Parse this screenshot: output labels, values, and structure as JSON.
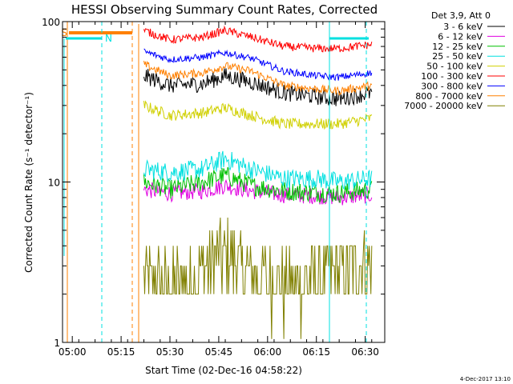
{
  "chart_data": {
    "type": "line",
    "title": "HESSI Observing Summary Count Rates, Corrected",
    "xlabel": "Start Time (02-Dec-16 04:58:22)",
    "ylabel": "Corrected Count Rate (s⁻¹ detector⁻¹)",
    "yscale": "log",
    "ylim": [
      1,
      100
    ],
    "xlim": [
      "04:57",
      "06:36"
    ],
    "x_ticks": [
      "05:00",
      "05:15",
      "05:30",
      "05:45",
      "06:00",
      "06:15",
      "06:30"
    ],
    "y_ticks": [
      "1",
      "10",
      "100"
    ],
    "legend_title": "Det 3,9, Att 0",
    "legend_position": "right",
    "timestamp": "4-Dec-2017 13:10",
    "flags": [
      {
        "label": "S",
        "color": "#ff8000"
      },
      {
        "label": "N",
        "color": "#00e0e0"
      }
    ],
    "x_times": [
      "05:22",
      "05:30",
      "05:40",
      "05:47",
      "05:55",
      "06:05",
      "06:15",
      "06:22",
      "06:32"
    ],
    "series": [
      {
        "name": "3 - 6 keV",
        "color": "#000000",
        "values": [
          46,
          40,
          41,
          46,
          42,
          36,
          34,
          33,
          36
        ]
      },
      {
        "name": "6 - 12 keV",
        "color": "#e000e0",
        "values": [
          9,
          8.5,
          8.8,
          9.5,
          8.8,
          8.3,
          8.2,
          8.0,
          8.3
        ]
      },
      {
        "name": "12 - 25 keV",
        "color": "#00c000",
        "values": [
          10,
          9,
          10,
          11,
          9.5,
          8.8,
          8.6,
          8.5,
          9
        ]
      },
      {
        "name": "25 - 50 keV",
        "color": "#00e0e0",
        "values": [
          12,
          11.5,
          12,
          14,
          12,
          10.5,
          10.5,
          10,
          10.5
        ]
      },
      {
        "name": "50 - 100 keV",
        "color": "#d0d000",
        "values": [
          30,
          26,
          27,
          29,
          26,
          23,
          23,
          23,
          25
        ]
      },
      {
        "name": "100 - 300 keV",
        "color": "#ff0000",
        "values": [
          88,
          77,
          80,
          88,
          80,
          70,
          68,
          68,
          72
        ]
      },
      {
        "name": "300 - 800 keV",
        "color": "#0000ff",
        "values": [
          65,
          58,
          60,
          64,
          59,
          49,
          46,
          45,
          48
        ]
      },
      {
        "name": "800 - 7000 keV",
        "color": "#ff8000",
        "values": [
          54,
          46,
          48,
          53,
          49,
          40,
          38,
          37,
          40
        ]
      },
      {
        "name": "7000 - 20000 keV",
        "color": "#808000",
        "values": [
          2.5,
          2.2,
          2.8,
          3.5,
          2.8,
          2.2,
          2.5,
          2.7,
          3.2
        ]
      }
    ]
  }
}
